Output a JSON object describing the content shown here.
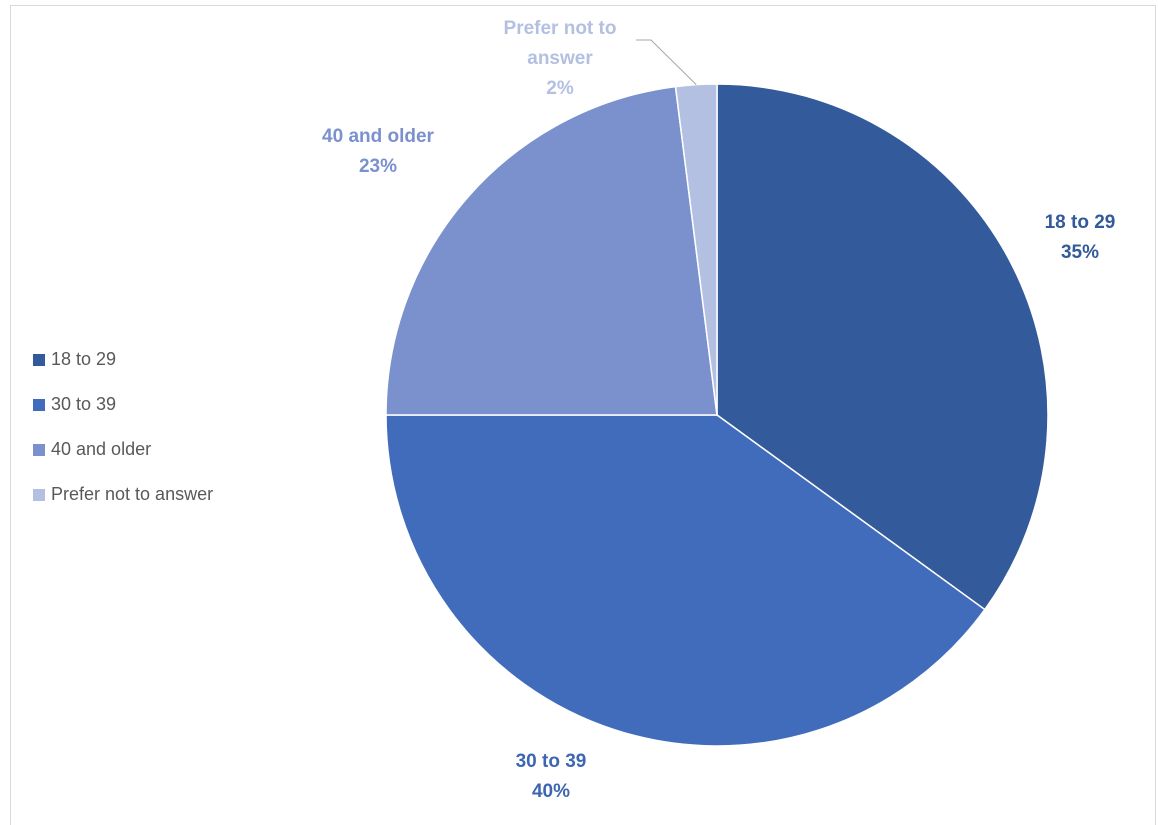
{
  "chart_data": {
    "type": "pie",
    "title": "",
    "categories": [
      "18 to 29",
      "30 to 39",
      "40 and older",
      "Prefer not to answer"
    ],
    "values": [
      35,
      40,
      23,
      2
    ],
    "colors": [
      "#335A9A",
      "#416CBC",
      "#7A91CE",
      "#B4C0E2"
    ],
    "data_labels": [
      {
        "name_lines": [
          "18 to 29"
        ],
        "percent": "35%",
        "color": "#335A9A"
      },
      {
        "name_lines": [
          "30 to 39"
        ],
        "percent": "40%",
        "color": "#3D66B2"
      },
      {
        "name_lines": [
          "40 and older"
        ],
        "percent": "23%",
        "color": "#7A91CE"
      },
      {
        "name_lines": [
          "Prefer not to",
          "answer"
        ],
        "percent": "2%",
        "color": "#B4C0E2"
      }
    ],
    "legend_position": "left",
    "start_angle": "12 o'clock",
    "direction": "clockwise"
  },
  "legend": {
    "items": [
      {
        "label": "18 to 29",
        "color": "#335A9A"
      },
      {
        "label": "30 to 39",
        "color": "#416CBC"
      },
      {
        "label": "40 and older",
        "color": "#7A91CE"
      },
      {
        "label": "Prefer not to answer",
        "color": "#B4C0E2"
      }
    ]
  }
}
